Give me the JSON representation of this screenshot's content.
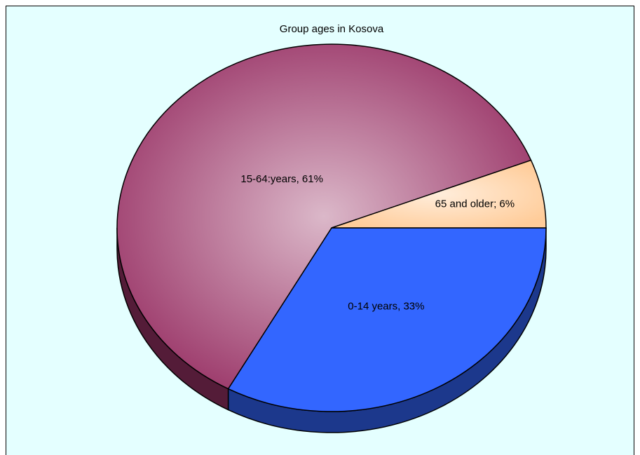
{
  "chart_data": {
    "type": "pie",
    "title": "Group ages in Kosova",
    "values": [
      33,
      61,
      6
    ],
    "value_labels": [
      "0-14 years, 33%",
      "15-64:years, 61%",
      "65 and older; 6%"
    ],
    "colors": [
      "#3366ff",
      "#993366",
      "#ffcc99"
    ]
  }
}
